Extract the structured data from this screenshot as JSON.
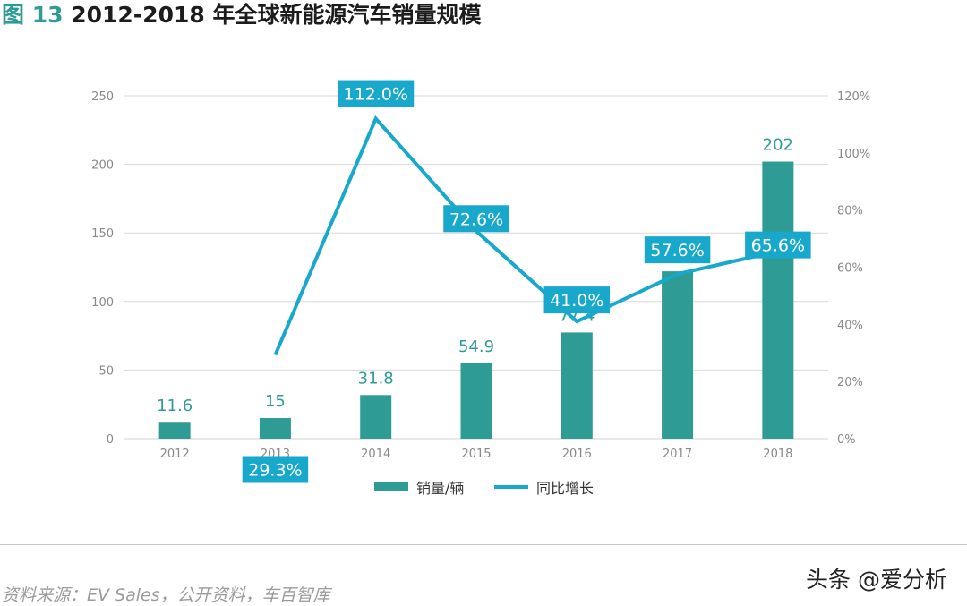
{
  "title": {
    "figure_no": "图 13",
    "text": "2012-2018 年全球新能源汽车销量规模"
  },
  "chart_data": {
    "type": "bar",
    "categories": [
      "2012",
      "2013",
      "2014",
      "2015",
      "2016",
      "2017",
      "2018"
    ],
    "series": [
      {
        "name": "销量/辆",
        "type": "bar",
        "axis": "left",
        "values": [
          11.6,
          15,
          31.8,
          54.9,
          77.4,
          122,
          202
        ],
        "labels": [
          "11.6",
          "15",
          "31.8",
          "54.9",
          "77.4",
          "122",
          "202"
        ]
      },
      {
        "name": "同比增长",
        "type": "line",
        "axis": "right",
        "x": [
          "2013",
          "2014",
          "2015",
          "2016",
          "2017",
          "2018"
        ],
        "values": [
          29.3,
          112.0,
          72.6,
          41.0,
          57.6,
          65.6
        ],
        "labels": [
          "29.3%",
          "112.0%",
          "72.6%",
          "41.0%",
          "57.6%",
          "65.6%"
        ]
      }
    ],
    "y_left": {
      "ylim": [
        0,
        250
      ],
      "ticks": [
        "0",
        "50",
        "100",
        "150",
        "200",
        "250"
      ]
    },
    "y_right": {
      "ylim": [
        0,
        120
      ],
      "ticks": [
        "0%",
        "20%",
        "40%",
        "60%",
        "80%",
        "100%",
        "120%"
      ]
    },
    "grid": true,
    "legend": "bottom-center",
    "colors": {
      "bar": "#2e9c94",
      "line": "#17a8cc",
      "label_box": "#17a8cc",
      "bar_label": "#2e9c94",
      "grid": "#d9d9d9",
      "axis_text": "#888888"
    }
  },
  "footer": {
    "source": "资料来源：EV Sales，公开资料，车百智库",
    "watermark": "头条 @爱分析"
  }
}
